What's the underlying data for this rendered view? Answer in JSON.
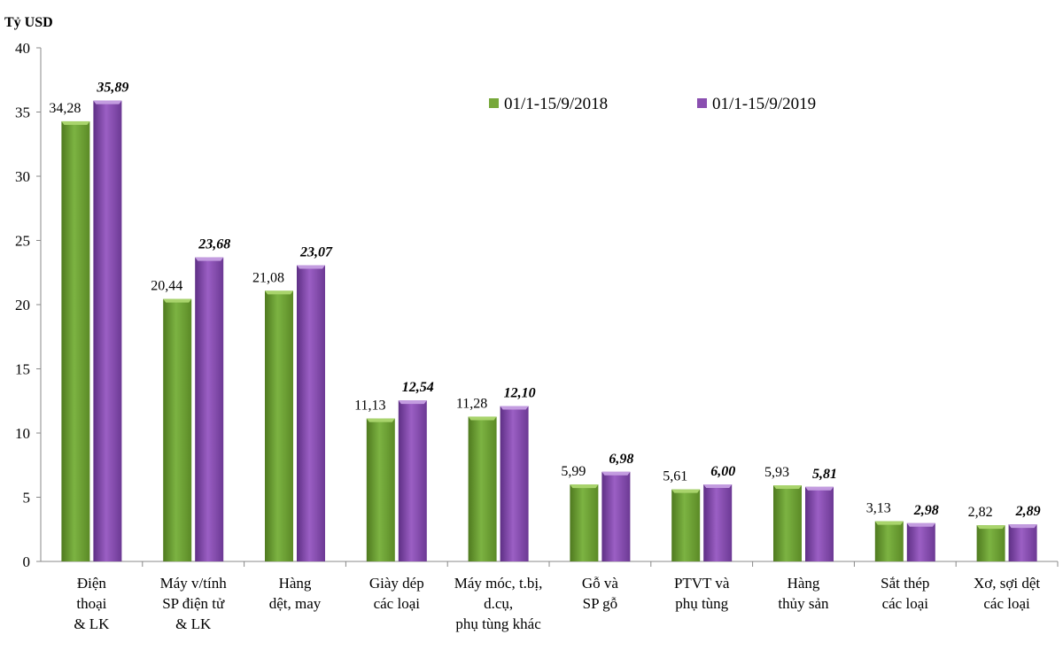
{
  "chart_data": {
    "type": "bar",
    "ylabel": "Tỷ USD",
    "ylim": [
      0,
      40
    ],
    "yticks": [
      "0",
      "5",
      "10",
      "15",
      "20",
      "25",
      "30",
      "35",
      "40"
    ],
    "legend_position": "top-right",
    "categories": [
      [
        "Điện",
        "thoại",
        "& LK"
      ],
      [
        "Máy v/tính",
        "SP điện tử",
        "& LK"
      ],
      [
        "Hàng",
        "dệt, may"
      ],
      [
        "Giày dép",
        "các loại"
      ],
      [
        "Máy móc, t.bị,",
        "d.cụ,",
        "phụ tùng khác"
      ],
      [
        "Gỗ và",
        "SP gỗ"
      ],
      [
        "PTVT và",
        "phụ tùng"
      ],
      [
        "Hàng",
        "thủy sản"
      ],
      [
        "Sắt thép",
        "các loại"
      ],
      [
        "Xơ, sợi dệt",
        "các loại"
      ]
    ],
    "series": [
      {
        "name": "01/1-15/9/2018",
        "color": "#77a83a",
        "values": [
          34.28,
          20.44,
          21.08,
          11.13,
          11.28,
          5.99,
          5.61,
          5.93,
          3.13,
          2.82
        ],
        "labels": [
          "34,28",
          "20,44",
          "21,08",
          "11,13",
          "11,28",
          "5,99",
          "5,61",
          "5,93",
          "3,13",
          "2,82"
        ]
      },
      {
        "name": "01/1-15/9/2019",
        "color": "#8a4fb0",
        "values": [
          35.89,
          23.68,
          23.07,
          12.54,
          12.1,
          6.98,
          6.0,
          5.81,
          2.98,
          2.89
        ],
        "labels": [
          "35,89",
          "23,68",
          "23,07",
          "12,54",
          "12,10",
          "6,98",
          "6,00",
          "5,81",
          "2,98",
          "2,89"
        ]
      }
    ]
  }
}
